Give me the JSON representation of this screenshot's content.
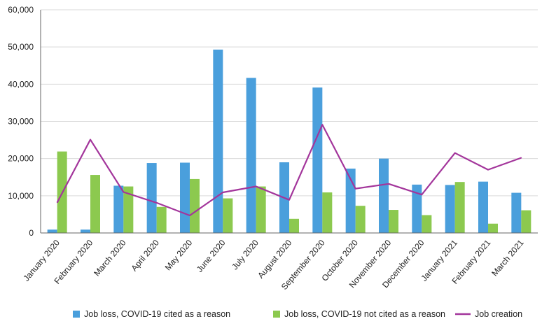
{
  "chart_data": {
    "type": "bar",
    "categories": [
      "January 2020",
      "February 2020",
      "March 2020",
      "April 2020",
      "May 2020",
      "June 2020",
      "July 2020",
      "August 2020",
      "September 2020",
      "October 2020",
      "November 2020",
      "December 2020",
      "January 2021",
      "February 2021",
      "March 2021"
    ],
    "series": [
      {
        "name": "Job loss, COVID-19 cited as a reason",
        "kind": "bar",
        "color": "#4a9fdc",
        "values": [
          900,
          900,
          12700,
          18800,
          18900,
          49300,
          41700,
          19000,
          39100,
          17300,
          20000,
          13000,
          12900,
          13800,
          10800
        ]
      },
      {
        "name": "Job loss, COVID-19 not cited as a reason",
        "kind": "bar",
        "color": "#8cc94f",
        "values": [
          21900,
          15600,
          12500,
          7000,
          14500,
          9300,
          12500,
          3800,
          10900,
          7300,
          6200,
          4800,
          13700,
          2500,
          6100
        ]
      },
      {
        "name": "Job creation",
        "kind": "line",
        "color": "#a3359b",
        "values": [
          8200,
          25100,
          11000,
          8100,
          4700,
          10900,
          12500,
          8900,
          29100,
          11900,
          13200,
          10300,
          21500,
          17000,
          20200
        ]
      }
    ],
    "yticks": [
      "0",
      "10,000",
      "20,000",
      "30,000",
      "40,000",
      "50,000",
      "60,000"
    ],
    "ylim": [
      0,
      60000
    ],
    "grid": true,
    "legend": "bottom"
  }
}
